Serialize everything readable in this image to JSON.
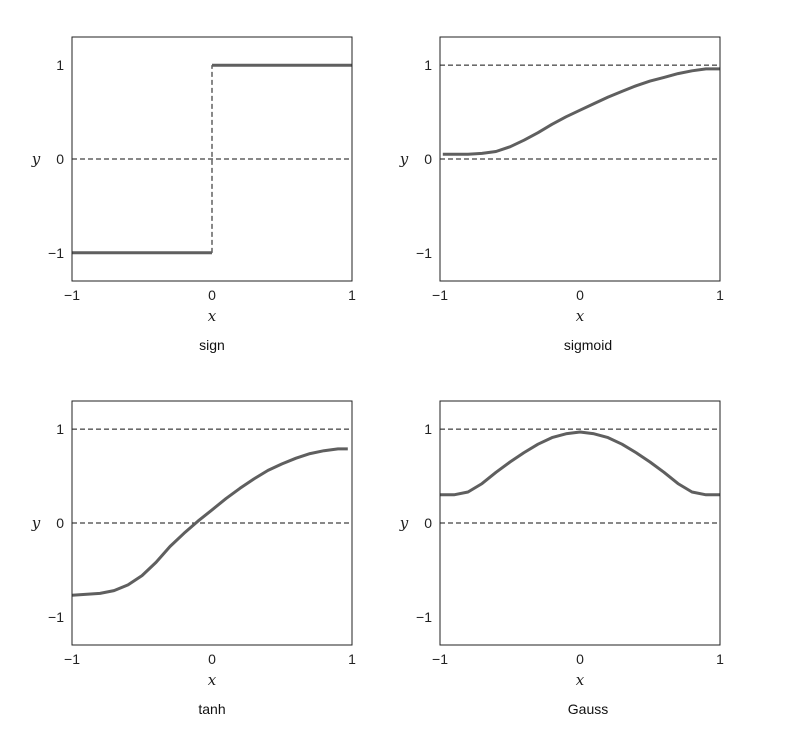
{
  "chart_data": [
    {
      "type": "line",
      "caption": "sign",
      "xlabel": "x",
      "ylabel": "y",
      "xlim": [
        -1,
        1
      ],
      "ylim": [
        -1.3,
        1.3
      ],
      "xticks": [
        "−1",
        "0",
        "1"
      ],
      "yticks": [
        "1",
        "0",
        "−1"
      ],
      "xtick_values": [
        -1,
        0,
        1
      ],
      "ytick_values": [
        1,
        0,
        -1
      ],
      "reference_lines": [
        {
          "orientation": "horizontal",
          "value": 0
        },
        {
          "orientation": "vertical",
          "value": 0
        }
      ],
      "series": [
        {
          "x": [
            -1,
            0
          ],
          "y": [
            -1,
            -1
          ]
        },
        {
          "x": [
            0,
            1
          ],
          "y": [
            1,
            1
          ]
        }
      ]
    },
    {
      "type": "line",
      "caption": "sigmoid",
      "xlabel": "x",
      "ylabel": "y",
      "xlim": [
        -1,
        1
      ],
      "ylim": [
        -1.3,
        1.3
      ],
      "xticks": [
        "−1",
        "0",
        "1"
      ],
      "yticks": [
        "1",
        "0",
        "−1"
      ],
      "xtick_values": [
        -1,
        0,
        1
      ],
      "ytick_values": [
        1,
        0,
        -1
      ],
      "reference_lines": [
        {
          "orientation": "horizontal",
          "value": 1
        },
        {
          "orientation": "horizontal",
          "value": 0
        }
      ],
      "series": [
        {
          "x": [
            -0.98,
            -0.8,
            -0.7,
            -0.6,
            -0.5,
            -0.4,
            -0.3,
            -0.2,
            -0.1,
            0,
            0.1,
            0.2,
            0.3,
            0.4,
            0.5,
            0.6,
            0.7,
            0.8,
            0.9,
            1.0
          ],
          "y": [
            0.05,
            0.05,
            0.06,
            0.08,
            0.13,
            0.2,
            0.28,
            0.37,
            0.45,
            0.52,
            0.59,
            0.66,
            0.72,
            0.78,
            0.83,
            0.87,
            0.91,
            0.94,
            0.96,
            0.96
          ]
        }
      ]
    },
    {
      "type": "line",
      "caption": "tanh",
      "xlabel": "x",
      "ylabel": "y",
      "xlim": [
        -1,
        1
      ],
      "ylim": [
        -1.3,
        1.3
      ],
      "xticks": [
        "−1",
        "0",
        "1"
      ],
      "yticks": [
        "1",
        "0",
        "−1"
      ],
      "xtick_values": [
        -1,
        0,
        1
      ],
      "ytick_values": [
        1,
        0,
        -1
      ],
      "reference_lines": [
        {
          "orientation": "horizontal",
          "value": 1
        },
        {
          "orientation": "horizontal",
          "value": 0
        }
      ],
      "series": [
        {
          "x": [
            -1.0,
            -0.8,
            -0.7,
            -0.6,
            -0.5,
            -0.4,
            -0.3,
            -0.2,
            -0.1,
            0,
            0.1,
            0.2,
            0.3,
            0.4,
            0.5,
            0.6,
            0.7,
            0.8,
            0.9,
            0.97
          ],
          "y": [
            -0.77,
            -0.75,
            -0.72,
            -0.66,
            -0.56,
            -0.42,
            -0.25,
            -0.11,
            0.02,
            0.14,
            0.26,
            0.37,
            0.47,
            0.56,
            0.63,
            0.69,
            0.74,
            0.77,
            0.79,
            0.79
          ]
        }
      ]
    },
    {
      "type": "line",
      "caption": "Gauss",
      "xlabel": "x",
      "ylabel": "y",
      "xlim": [
        -1,
        1
      ],
      "ylim": [
        -1.3,
        1.3
      ],
      "xticks": [
        "−1",
        "0",
        "1"
      ],
      "yticks": [
        "1",
        "0",
        "−1"
      ],
      "xtick_values": [
        -1,
        0,
        1
      ],
      "ytick_values": [
        1,
        0,
        -1
      ],
      "reference_lines": [
        {
          "orientation": "horizontal",
          "value": 1
        },
        {
          "orientation": "horizontal",
          "value": 0
        }
      ],
      "series": [
        {
          "x": [
            -1.0,
            -0.9,
            -0.8,
            -0.7,
            -0.6,
            -0.5,
            -0.4,
            -0.3,
            -0.2,
            -0.1,
            0,
            0.1,
            0.2,
            0.3,
            0.4,
            0.5,
            0.6,
            0.7,
            0.8,
            0.9,
            1.0
          ],
          "y": [
            0.3,
            0.3,
            0.33,
            0.42,
            0.54,
            0.65,
            0.75,
            0.84,
            0.91,
            0.95,
            0.97,
            0.95,
            0.91,
            0.84,
            0.75,
            0.65,
            0.54,
            0.42,
            0.33,
            0.3,
            0.3
          ]
        }
      ]
    }
  ]
}
